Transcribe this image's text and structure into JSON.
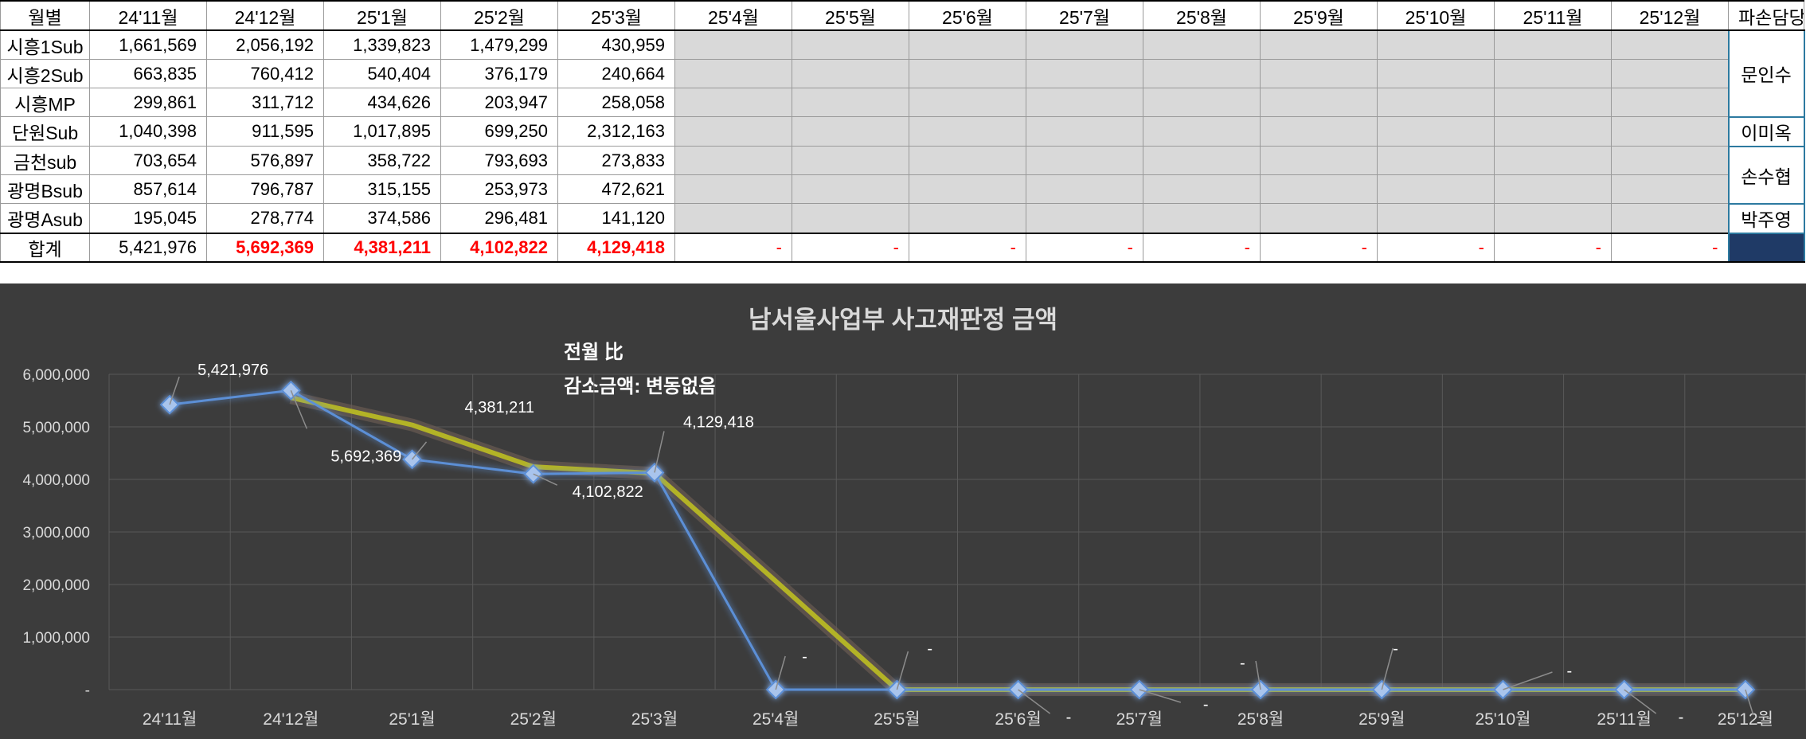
{
  "table": {
    "header_label": "월별",
    "months": [
      "24'11월",
      "24'12월",
      "25'1월",
      "25'2월",
      "25'3월",
      "25'4월",
      "25'5월",
      "25'6월",
      "25'7월",
      "25'8월",
      "25'9월",
      "25'10월",
      "25'11월",
      "25'12월"
    ],
    "manager_header": "파손담당",
    "rows": [
      {
        "name": "시흥1Sub",
        "values": [
          "1,661,569",
          "2,056,192",
          "1,339,823",
          "1,479,299",
          "430,959"
        ]
      },
      {
        "name": "시흥2Sub",
        "values": [
          "663,835",
          "760,412",
          "540,404",
          "376,179",
          "240,664"
        ]
      },
      {
        "name": "시흥MP",
        "values": [
          "299,861",
          "311,712",
          "434,626",
          "203,947",
          "258,058"
        ]
      },
      {
        "name": "단원Sub",
        "values": [
          "1,040,398",
          "911,595",
          "1,017,895",
          "699,250",
          "2,312,163"
        ]
      },
      {
        "name": "금천sub",
        "values": [
          "703,654",
          "576,897",
          "358,722",
          "793,693",
          "273,833"
        ]
      },
      {
        "name": "광명Bsub",
        "values": [
          "857,614",
          "796,787",
          "315,155",
          "253,973",
          "472,621"
        ]
      },
      {
        "name": "광명Asub",
        "values": [
          "195,045",
          "278,774",
          "374,586",
          "296,481",
          "141,120"
        ]
      }
    ],
    "managers": [
      {
        "name": "문인수",
        "rowspan": 3
      },
      {
        "name": "이미옥",
        "rowspan": 1
      },
      {
        "name": "손수협",
        "rowspan": 2
      },
      {
        "name": "박주영",
        "rowspan": 1
      }
    ],
    "total": {
      "label": "합계",
      "values": [
        "5,421,976",
        "5,692,369",
        "4,381,211",
        "4,102,822",
        "4,129,418",
        "-",
        "-",
        "-",
        "-",
        "-",
        "-",
        "-",
        "-",
        "-"
      ]
    }
  },
  "chart_data": {
    "type": "line",
    "title": "남서울사업부 사고재판정 금액",
    "annotation_line1": "전월 比",
    "annotation_line2": "감소금액:  변동없음",
    "categories": [
      "24'11월",
      "24'12월",
      "25'1월",
      "25'2월",
      "25'3월",
      "25'4월",
      "25'5월",
      "25'6월",
      "25'7월",
      "25'8월",
      "25'9월",
      "25'10월",
      "25'11월",
      "25'12월"
    ],
    "series": [
      {
        "values": [
          5421976,
          5692369,
          4381211,
          4102822,
          4129418,
          0,
          0,
          0,
          0,
          0,
          0,
          0,
          0,
          0
        ],
        "color": "#5b8fd6",
        "marker": "diamond"
      }
    ],
    "trendline": {
      "values": [
        null,
        5556000,
        5036000,
        4241000,
        4115000,
        2064000,
        0,
        0,
        0,
        0,
        0,
        0,
        0,
        0
      ],
      "color": "#b3b326"
    },
    "data_labels": [
      "5,421,976",
      "5,692,369",
      "4,381,211",
      "4,102,822",
      "4,129,418",
      "-",
      "-",
      "-",
      "-",
      "-",
      "-",
      "-",
      "-",
      "-"
    ],
    "y_ticks": [
      "-",
      "1,000,000",
      "2,000,000",
      "3,000,000",
      "4,000,000",
      "5,000,000",
      "6,000,000"
    ],
    "ylim": [
      0,
      6000000
    ],
    "grid": true,
    "legend": "none",
    "colors": {
      "background": "#3c3c3c",
      "grid": "#595959",
      "text": "#d9d9d9",
      "title": "#d9d9d9"
    }
  }
}
